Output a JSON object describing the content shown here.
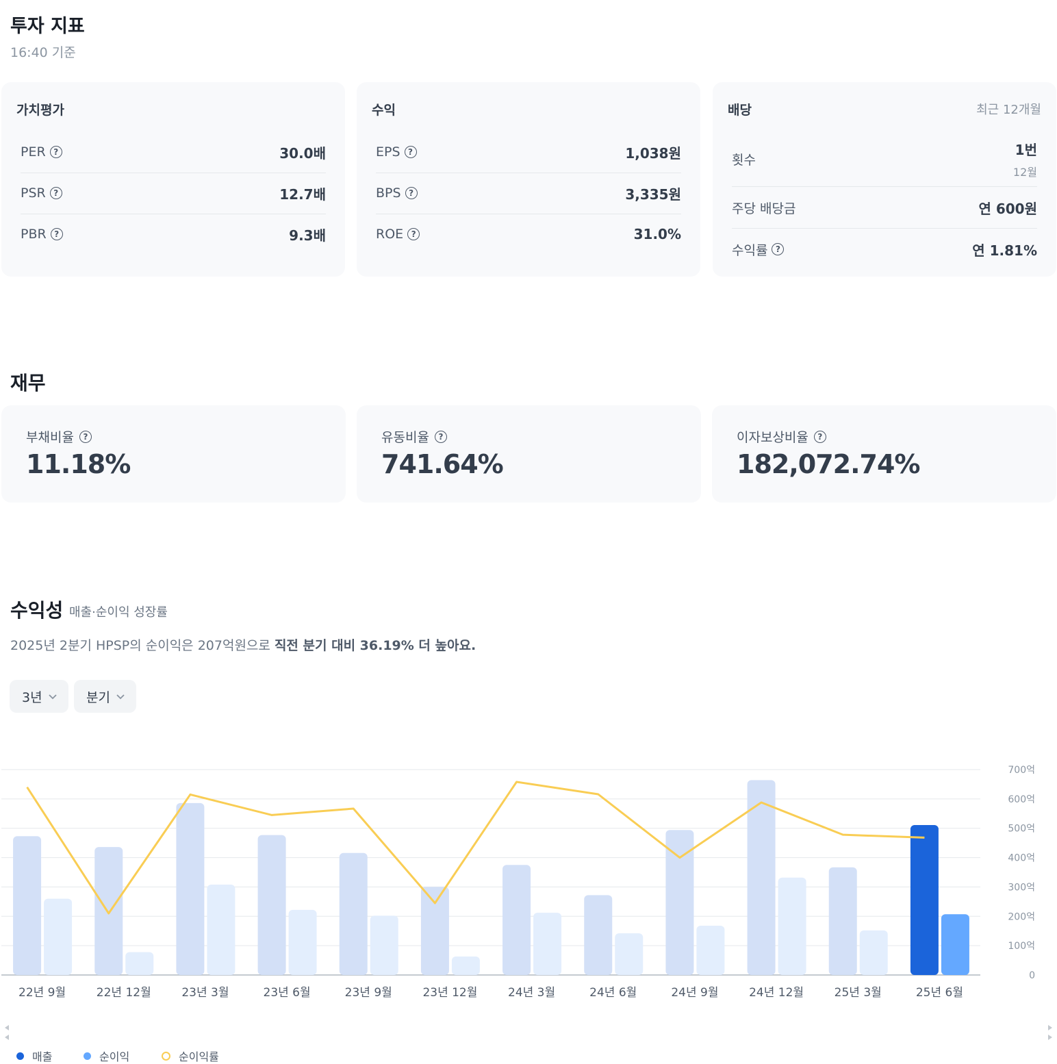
{
  "indicators": {
    "title": "투자 지표",
    "timestamp": "16:40 기준",
    "valuation": {
      "title": "가치평가",
      "rows": [
        {
          "label": "PER",
          "value": "30.0배"
        },
        {
          "label": "PSR",
          "value": "12.7배"
        },
        {
          "label": "PBR",
          "value": "9.3배"
        }
      ]
    },
    "profit": {
      "title": "수익",
      "rows": [
        {
          "label": "EPS",
          "value": "1,038원"
        },
        {
          "label": "BPS",
          "value": "3,335원"
        },
        {
          "label": "ROE",
          "value": "31.0%"
        }
      ]
    },
    "dividend": {
      "title": "배당",
      "period": "최근 12개월",
      "count_label": "횟수",
      "count_value": "1번",
      "count_month": "12월",
      "per_share_label": "주당 배당금",
      "per_share_value": "연 600원",
      "yield_label": "수익률",
      "yield_value": "연 1.81%"
    }
  },
  "finance": {
    "title": "재무",
    "items": [
      {
        "label": "부채비율",
        "value": "11.18%"
      },
      {
        "label": "유동비율",
        "value": "741.64%"
      },
      {
        "label": "이자보상비율",
        "value": "182,072.74%"
      }
    ]
  },
  "profitability": {
    "title": "수익성",
    "subtitle": "매출·순이익 성장률",
    "desc_plain": "2025년 2분기 HPSP의 순이익은 207억원으로 ",
    "desc_bold": "직전 분기 대비 36.19% 더 높아요.",
    "range_dropdown": "3년",
    "period_dropdown": "분기"
  },
  "icons": {
    "help": "help-circle-icon",
    "chevron": "chevron-down-icon",
    "scroll_left": "scroll-left-arrow-icon",
    "scroll_right": "scroll-right-arrow-icon"
  },
  "colors": {
    "revenue_light": "#d3e0f7",
    "net_light": "#e3eefd",
    "revenue_active": "#1b64da",
    "net_active": "#64a8ff",
    "margin_line": "#f9cd54"
  },
  "chart_data": {
    "type": "bar",
    "categories": [
      "22년 9월",
      "22년 12월",
      "23년 3월",
      "23년 6월",
      "23년 9월",
      "23년 12월",
      "24년 3월",
      "24년 6월",
      "24년 9월",
      "24년 12월",
      "25년 3월",
      "25년 6월"
    ],
    "series": [
      {
        "name": "매출",
        "values": [
          473,
          436,
          586,
          477,
          416,
          300,
          375,
          272,
          494,
          664,
          367,
          511
        ]
      },
      {
        "name": "순이익",
        "values": [
          260,
          78,
          308,
          222,
          202,
          63,
          212,
          142,
          168,
          332,
          152,
          207
        ]
      },
      {
        "name": "순이익률",
        "kind": "line",
        "values": [
          640,
          210,
          615,
          545,
          567,
          245,
          658,
          616,
          400,
          588,
          478,
          468
        ]
      }
    ],
    "yticks": [
      "700억",
      "600억",
      "500억",
      "400억",
      "300억",
      "200억",
      "100억",
      "0"
    ],
    "ylim": [
      0,
      700
    ],
    "grid": true,
    "legend": "bottom-left",
    "highlight_index": 11
  }
}
